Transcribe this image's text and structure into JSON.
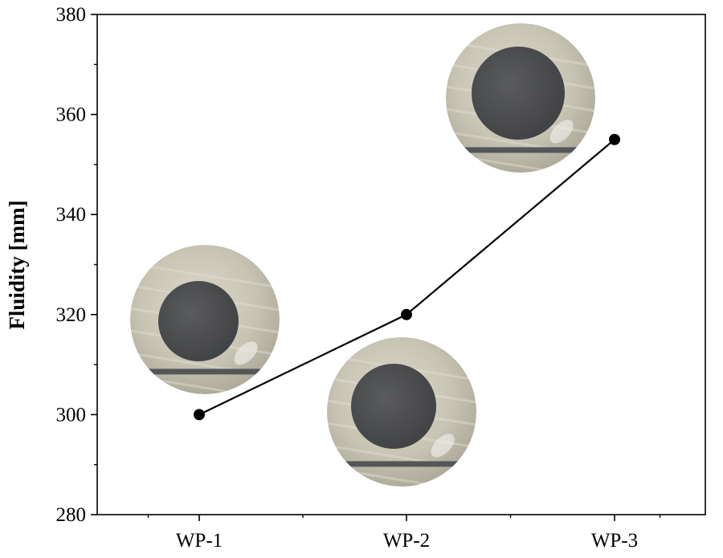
{
  "chart_data": {
    "type": "line",
    "title": "",
    "xlabel": "",
    "ylabel": "Fluidity [mm]",
    "categories": [
      "WP-1",
      "WP-2",
      "WP-3"
    ],
    "series": [
      {
        "values": [
          300,
          320,
          355
        ]
      }
    ],
    "ylim": [
      280,
      380
    ],
    "yticks": [
      "280",
      "300",
      "320",
      "340",
      "360",
      "380"
    ],
    "grid": false,
    "legend": "none",
    "colors": {
      "line": "#000000",
      "marker": "#000000",
      "paste_disk": "#4e4f51",
      "background_plate": "#c9c6b6"
    },
    "photo_insets": [
      "WP-1 flow-spread photo",
      "WP-2 flow-spread photo",
      "WP-3 flow-spread photo"
    ]
  }
}
